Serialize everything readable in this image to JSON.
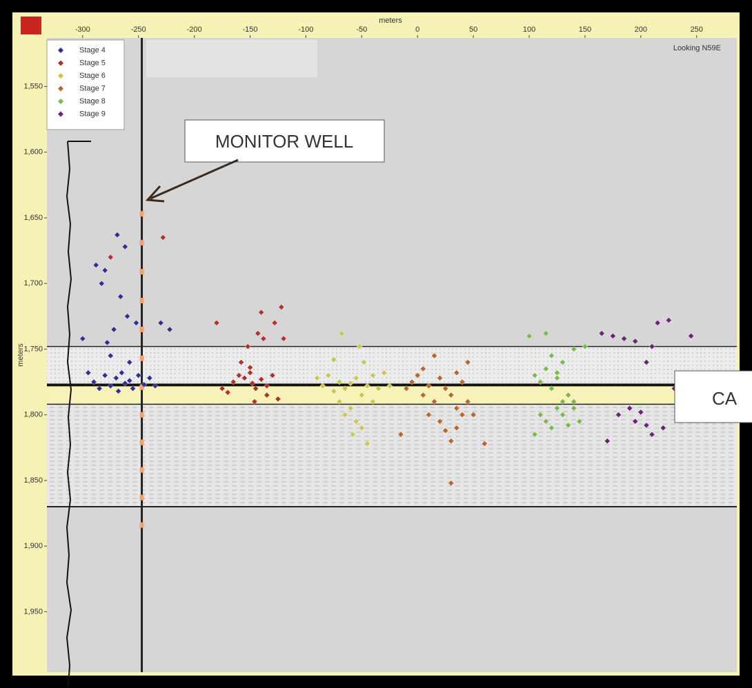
{
  "chart_data": {
    "type": "scatter",
    "xlabel": "meters",
    "ylabel": "meters",
    "view_note": "Looking N59E",
    "annotations": [
      "MONITOR WELL",
      "CA"
    ],
    "xlim": [
      -332,
      286
    ],
    "ylim": [
      1513,
      1996
    ],
    "y_inverted": true,
    "xticks": [
      -300,
      -250,
      -200,
      -150,
      -100,
      -50,
      0,
      50,
      100,
      150,
      200,
      250
    ],
    "yticks": [
      {
        "value": 1550,
        "label": "1,550"
      },
      {
        "value": 1600,
        "label": "1,600"
      },
      {
        "value": 1650,
        "label": "1,650"
      },
      {
        "value": 1700,
        "label": "1,700"
      },
      {
        "value": 1750,
        "label": "1,750"
      },
      {
        "value": 1800,
        "label": "1,800"
      },
      {
        "value": 1850,
        "label": "1,850"
      },
      {
        "value": 1900,
        "label": "1,900"
      },
      {
        "value": 1950,
        "label": "1,950"
      }
    ],
    "bands": [
      {
        "top": 1748,
        "bottom": 1777,
        "color": "#ececec"
      },
      {
        "top": 1777,
        "bottom": 1792,
        "color": "#f7f2b8"
      },
      {
        "top": 1792,
        "bottom": 1870,
        "color": "#e6e6e6"
      }
    ],
    "monitor_well": {
      "x": -247,
      "receivers": [
        1647,
        1669,
        1691,
        1713,
        1735,
        1757,
        1779,
        1800,
        1821,
        1842,
        1863,
        1884
      ]
    },
    "series": [
      {
        "name": "Stage 4",
        "color": "#2e3192",
        "x": [
          -290,
          -285,
          -280,
          -275,
          -270,
          -268,
          -265,
          -262,
          -258,
          -255,
          -250,
          -245,
          -240,
          -235,
          -295,
          -300,
          -278,
          -272,
          -260,
          -266,
          -283,
          -288,
          -252,
          -275,
          -269,
          -262,
          -280,
          -258,
          -230,
          -222
        ],
        "values": [
          1775,
          1780,
          1770,
          1778,
          1772,
          1782,
          1768,
          1776,
          1774,
          1780,
          1770,
          1777,
          1772,
          1778,
          1768,
          1742,
          1745,
          1735,
          1725,
          1710,
          1700,
          1686,
          1730,
          1755,
          1663,
          1672,
          1690,
          1760,
          1730,
          1735
        ]
      },
      {
        "name": "Stage 5",
        "color": "#b2302a",
        "x": [
          -175,
          -165,
          -160,
          -155,
          -150,
          -148,
          -145,
          -140,
          -135,
          -130,
          -158,
          -152,
          -143,
          -138,
          -128,
          -122,
          -180,
          -140,
          -135,
          -120,
          -228,
          -275,
          -170,
          -146,
          -150,
          -125
        ],
        "values": [
          1780,
          1775,
          1770,
          1772,
          1768,
          1776,
          1780,
          1773,
          1778,
          1770,
          1760,
          1748,
          1738,
          1742,
          1730,
          1718,
          1730,
          1722,
          1785,
          1742,
          1665,
          1680,
          1783,
          1790,
          1764,
          1788
        ]
      },
      {
        "name": "Stage 6",
        "color": "#c9c84a",
        "x": [
          -90,
          -85,
          -80,
          -75,
          -70,
          -65,
          -60,
          -55,
          -50,
          -45,
          -40,
          -35,
          -60,
          -55,
          -50,
          -65,
          -70,
          -45,
          -30,
          -25,
          -68,
          -52,
          -48,
          -58,
          -40,
          -75
        ],
        "values": [
          1772,
          1778,
          1770,
          1782,
          1775,
          1780,
          1776,
          1772,
          1785,
          1778,
          1770,
          1780,
          1795,
          1805,
          1810,
          1800,
          1790,
          1822,
          1768,
          1778,
          1738,
          1748,
          1760,
          1815,
          1790,
          1758
        ]
      },
      {
        "name": "Stage 7",
        "color": "#b8652e",
        "x": [
          -10,
          -5,
          0,
          5,
          10,
          15,
          20,
          25,
          30,
          35,
          40,
          45,
          50,
          20,
          25,
          30,
          35,
          40,
          -15,
          60,
          30,
          15,
          45,
          35,
          10,
          5
        ],
        "values": [
          1780,
          1775,
          1770,
          1785,
          1778,
          1790,
          1772,
          1780,
          1785,
          1795,
          1775,
          1790,
          1800,
          1805,
          1812,
          1820,
          1810,
          1800,
          1815,
          1822,
          1852,
          1755,
          1760,
          1768,
          1800,
          1765
        ]
      },
      {
        "name": "Stage 8",
        "color": "#7cb84c",
        "x": [
          105,
          110,
          115,
          120,
          125,
          130,
          135,
          140,
          110,
          115,
          120,
          125,
          130,
          135,
          140,
          145,
          100,
          115,
          150,
          120,
          130,
          105,
          140,
          125
        ],
        "values": [
          1770,
          1775,
          1765,
          1780,
          1772,
          1790,
          1785,
          1795,
          1800,
          1805,
          1810,
          1795,
          1800,
          1808,
          1790,
          1805,
          1740,
          1738,
          1748,
          1755,
          1760,
          1815,
          1750,
          1768
        ]
      },
      {
        "name": "Stage 9",
        "color": "#6b2277",
        "x": [
          165,
          175,
          185,
          195,
          205,
          210,
          215,
          225,
          230,
          200,
          205,
          210,
          195,
          170,
          180,
          190,
          220,
          245
        ],
        "values": [
          1738,
          1740,
          1742,
          1744,
          1760,
          1748,
          1730,
          1728,
          1780,
          1798,
          1808,
          1815,
          1805,
          1820,
          1800,
          1795,
          1810,
          1740
        ]
      }
    ]
  }
}
